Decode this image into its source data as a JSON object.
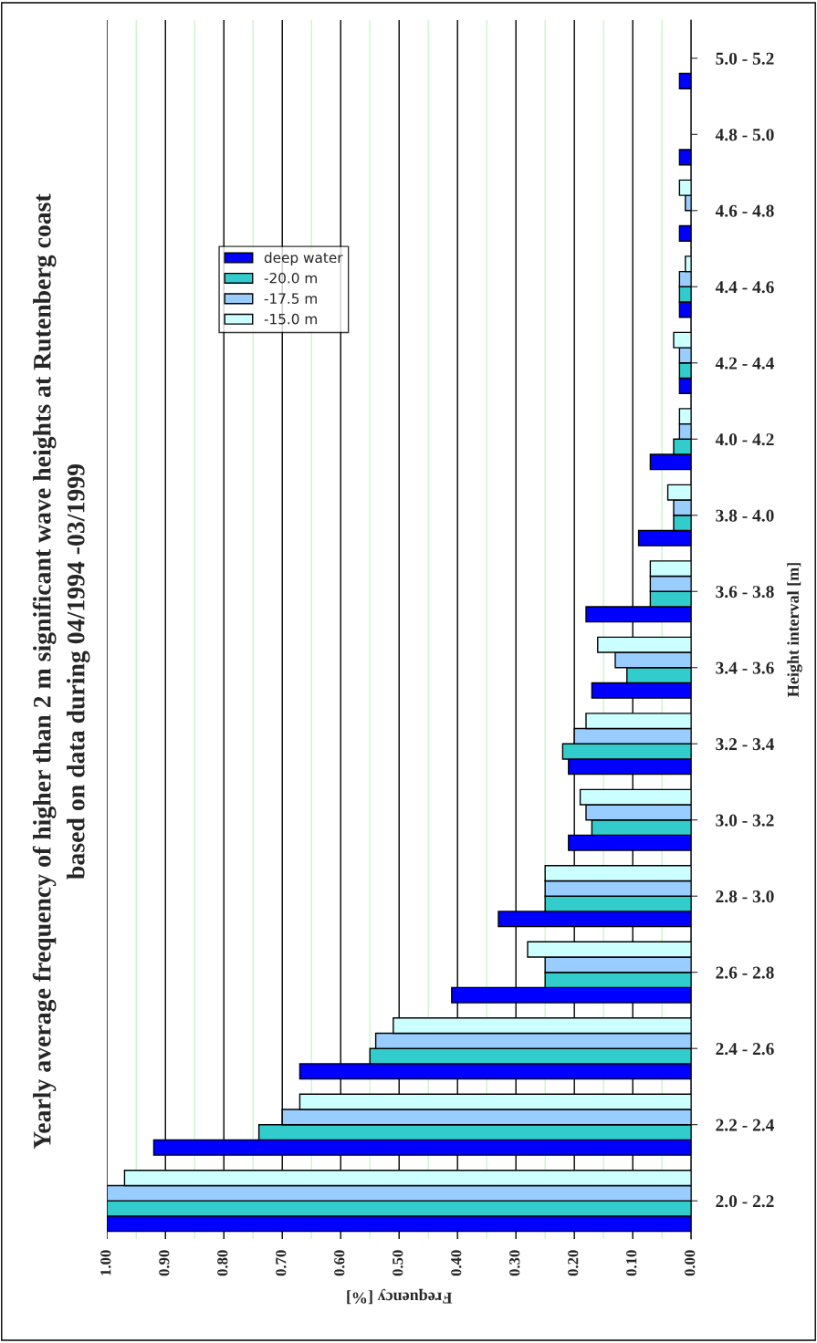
{
  "chart_data": {
    "type": "bar",
    "orientation": "horizontal",
    "title": "Yearly average frequency of higher than 2 m significant wave heights at Rutenberg coast\nbased on data during 04/1994 -03/1999",
    "xlabel": "Frequency [%]",
    "ylabel": "Height interval [m]",
    "categories": [
      "5.0 - 5.2",
      "4.8 - 5.0",
      "4.6 - 4.8",
      "4.4 - 4.6",
      "4.2 - 4.4",
      "4.0 - 4.2",
      "3.8 - 4.0",
      "3.6 - 3.8",
      "3.4 - 3.6",
      "3.2 - 3.4",
      "3.0 - 3.2",
      "2.8 - 3.0",
      "2.6 - 2.8",
      "2.4 - 2.6",
      "2.2 - 2.4",
      "2.0 - 2.2"
    ],
    "series": [
      {
        "name": "deep water",
        "color": "#0000ff",
        "values": [
          0.02,
          0.02,
          0.02,
          0.02,
          0.02,
          0.07,
          0.09,
          0.18,
          0.17,
          0.21,
          0.21,
          0.33,
          0.41,
          0.67,
          0.92,
          1.0
        ]
      },
      {
        "name": "-20.0 m",
        "color": "#33cccc",
        "values": [
          null,
          null,
          null,
          0.02,
          0.02,
          0.03,
          0.03,
          0.07,
          0.11,
          0.22,
          0.17,
          0.25,
          0.25,
          0.55,
          0.74,
          1.0
        ]
      },
      {
        "name": "-17.5 m",
        "color": "#99ccff",
        "values": [
          null,
          null,
          0.01,
          0.02,
          0.02,
          0.02,
          0.03,
          0.07,
          0.13,
          0.2,
          0.18,
          0.25,
          0.25,
          0.54,
          0.7,
          1.0
        ]
      },
      {
        "name": "-15.0 m",
        "color": "#ccffff",
        "values": [
          null,
          null,
          0.02,
          0.01,
          0.03,
          0.02,
          0.04,
          0.07,
          0.16,
          0.18,
          0.19,
          0.25,
          0.28,
          0.51,
          0.67,
          0.97
        ]
      }
    ],
    "xlim": [
      1.0,
      0.0
    ],
    "xticks": [
      {
        "value": 1.0,
        "label": "1.00"
      },
      {
        "value": 0.95,
        "label": null
      },
      {
        "value": 0.9,
        "label": "0.90"
      },
      {
        "value": 0.85,
        "label": null
      },
      {
        "value": 0.8,
        "label": "0.80"
      },
      {
        "value": 0.75,
        "label": null
      },
      {
        "value": 0.7,
        "label": "0.70"
      },
      {
        "value": 0.65,
        "label": null
      },
      {
        "value": 0.6,
        "label": "0.60"
      },
      {
        "value": 0.55,
        "label": null
      },
      {
        "value": 0.5,
        "label": "0.50"
      },
      {
        "value": 0.45,
        "label": null
      },
      {
        "value": 0.4,
        "label": "0.40"
      },
      {
        "value": 0.35,
        "label": null
      },
      {
        "value": 0.3,
        "label": "0.30"
      },
      {
        "value": 0.25,
        "label": null
      },
      {
        "value": 0.2,
        "label": "0.20"
      },
      {
        "value": 0.15,
        "label": null
      },
      {
        "value": 0.1,
        "label": "0.10"
      },
      {
        "value": 0.05,
        "label": null
      },
      {
        "value": 0.0,
        "label": "0.00"
      }
    ],
    "grid": "x",
    "legend": "top left"
  }
}
